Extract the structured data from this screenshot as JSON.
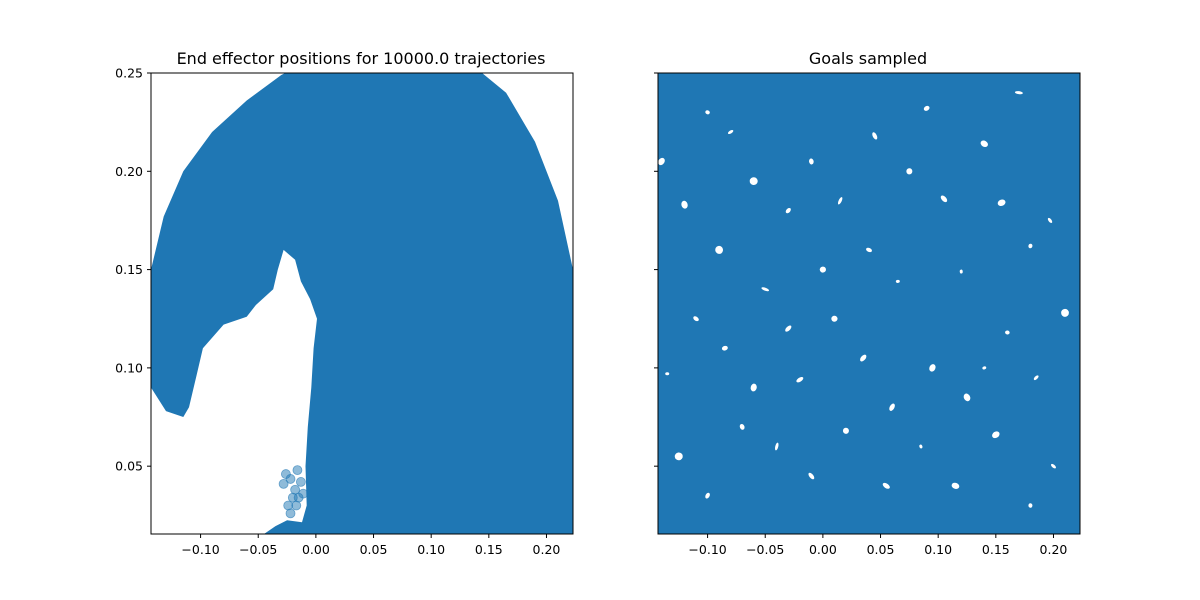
{
  "chart_data": [
    {
      "type": "scatter",
      "title": "End effector positions for 10000.0 trajectories",
      "xlabel": "",
      "ylabel": "",
      "xlim": [
        -0.143,
        0.223
      ],
      "ylim": [
        0.0155,
        0.25
      ],
      "xticks": [
        -0.1,
        -0.05,
        0.0,
        0.05,
        0.1,
        0.15,
        0.2
      ],
      "xtick_labels": [
        "−0.10",
        "−0.05",
        "0.00",
        "0.05",
        "0.10",
        "0.15",
        "0.20"
      ],
      "yticks": [
        0.05,
        0.1,
        0.15,
        0.2,
        0.25
      ],
      "ytick_labels": [
        "0.05",
        "0.10",
        "0.15",
        "0.20",
        "0.25"
      ],
      "grid": false,
      "color": "#1f77b4",
      "point_alpha": 0.5,
      "filled_region": [
        [
          -0.143,
          0.09
        ],
        [
          -0.143,
          0.15
        ],
        [
          -0.132,
          0.177
        ],
        [
          -0.115,
          0.2
        ],
        [
          -0.09,
          0.22
        ],
        [
          -0.06,
          0.236
        ],
        [
          -0.03,
          0.249
        ],
        [
          -0.02,
          0.252
        ],
        [
          0.14,
          0.252
        ],
        [
          0.165,
          0.24
        ],
        [
          0.19,
          0.215
        ],
        [
          0.21,
          0.185
        ],
        [
          0.223,
          0.15
        ],
        [
          0.223,
          0.0155
        ],
        [
          -0.045,
          0.0155
        ],
        [
          -0.035,
          0.0195
        ],
        [
          -0.025,
          0.0225
        ],
        [
          -0.012,
          0.0215
        ],
        [
          -0.008,
          0.03
        ],
        [
          -0.009,
          0.05
        ],
        [
          -0.007,
          0.07
        ],
        [
          -0.004,
          0.09
        ],
        [
          -0.002,
          0.11
        ],
        [
          0.001,
          0.125
        ],
        [
          -0.005,
          0.135
        ],
        [
          -0.013,
          0.144
        ],
        [
          -0.018,
          0.155
        ],
        [
          -0.028,
          0.16
        ],
        [
          -0.033,
          0.15
        ],
        [
          -0.037,
          0.14
        ],
        [
          -0.052,
          0.132
        ],
        [
          -0.06,
          0.126
        ],
        [
          -0.08,
          0.122
        ],
        [
          -0.098,
          0.11
        ],
        [
          -0.104,
          0.095
        ],
        [
          -0.11,
          0.08
        ],
        [
          -0.115,
          0.075
        ],
        [
          -0.13,
          0.078
        ]
      ],
      "outlier_points": [
        [
          -0.026,
          0.046
        ],
        [
          -0.022,
          0.0435
        ],
        [
          -0.018,
          0.038
        ],
        [
          -0.015,
          0.034
        ],
        [
          -0.024,
          0.03
        ],
        [
          -0.022,
          0.026
        ],
        [
          -0.028,
          0.041
        ],
        [
          -0.016,
          0.048
        ],
        [
          -0.013,
          0.042
        ],
        [
          -0.011,
          0.036
        ],
        [
          -0.02,
          0.034
        ],
        [
          -0.017,
          0.03
        ]
      ]
    },
    {
      "type": "scatter",
      "title": "Goals sampled",
      "xlabel": "",
      "ylabel": "",
      "xlim": [
        -0.143,
        0.223
      ],
      "ylim": [
        0.0155,
        0.25
      ],
      "xticks": [
        -0.1,
        -0.05,
        0.0,
        0.05,
        0.1,
        0.15,
        0.2
      ],
      "xtick_labels": [
        "−0.10",
        "−0.05",
        "0.00",
        "0.05",
        "0.10",
        "0.15",
        "0.20"
      ],
      "yticks": [
        0.05,
        0.1,
        0.15,
        0.2,
        0.25
      ],
      "grid": false,
      "color": "#1f77b4",
      "sample_count": 10000,
      "gaps": [
        [
          -0.135,
          0.097
        ],
        [
          -0.14,
          0.205
        ],
        [
          -0.12,
          0.183
        ],
        [
          -0.1,
          0.23
        ],
        [
          -0.08,
          0.22
        ],
        [
          -0.06,
          0.195
        ],
        [
          -0.03,
          0.18
        ],
        [
          -0.01,
          0.205
        ],
        [
          0.015,
          0.185
        ],
        [
          0.045,
          0.218
        ],
        [
          0.075,
          0.2
        ],
        [
          0.105,
          0.186
        ],
        [
          0.12,
          0.149
        ],
        [
          0.14,
          0.214
        ],
        [
          0.155,
          0.184
        ],
        [
          0.18,
          0.162
        ],
        [
          0.197,
          0.175
        ],
        [
          0.21,
          0.128
        ],
        [
          -0.11,
          0.125
        ],
        [
          -0.085,
          0.11
        ],
        [
          -0.05,
          0.14
        ],
        [
          -0.02,
          0.094
        ],
        [
          0.01,
          0.125
        ],
        [
          0.035,
          0.105
        ],
        [
          0.065,
          0.144
        ],
        [
          0.095,
          0.1
        ],
        [
          0.125,
          0.085
        ],
        [
          0.16,
          0.118
        ],
        [
          0.185,
          0.095
        ],
        [
          -0.125,
          0.055
        ],
        [
          -0.1,
          0.035
        ],
        [
          -0.07,
          0.07
        ],
        [
          -0.04,
          0.06
        ],
        [
          -0.01,
          0.045
        ],
        [
          0.02,
          0.068
        ],
        [
          0.055,
          0.04
        ],
        [
          0.085,
          0.06
        ],
        [
          0.115,
          0.04
        ],
        [
          0.15,
          0.066
        ],
        [
          0.18,
          0.03
        ],
        [
          0.2,
          0.05
        ],
        [
          -0.09,
          0.16
        ],
        [
          0.04,
          0.16
        ],
        [
          0.09,
          0.232
        ],
        [
          0.17,
          0.24
        ],
        [
          -0.03,
          0.12
        ],
        [
          0.0,
          0.15
        ],
        [
          0.06,
          0.08
        ],
        [
          0.14,
          0.1
        ],
        [
          -0.06,
          0.09
        ]
      ]
    }
  ]
}
